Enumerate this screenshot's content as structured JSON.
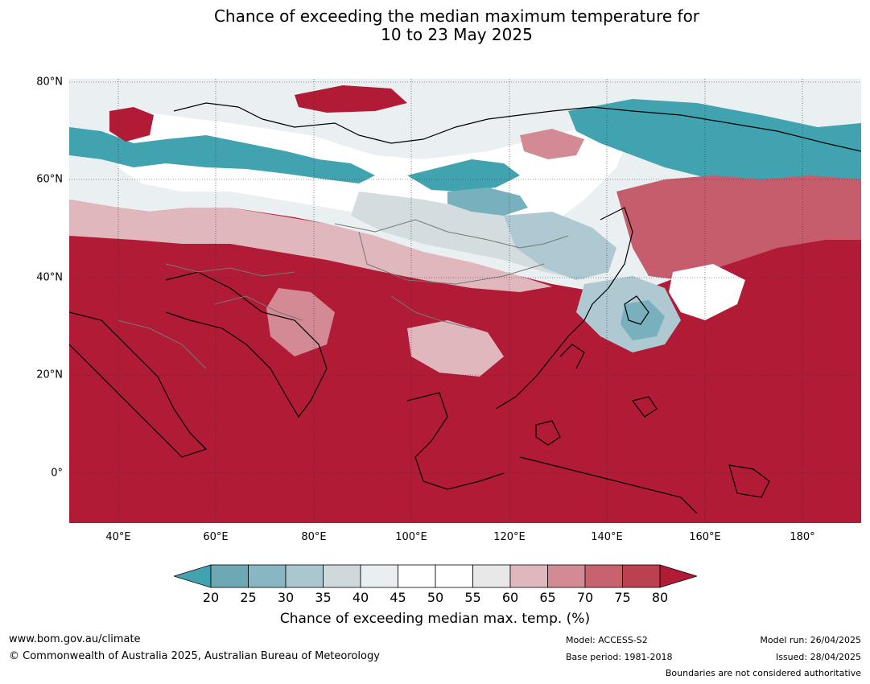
{
  "title_line1": "Chance of exceeding the median maximum temperature for",
  "title_line2": "10 to 23 May 2025",
  "map": {
    "lon_range": [
      30,
      192
    ],
    "lat_range": [
      -10,
      81
    ],
    "lat_labels": [
      "80°N",
      "60°N",
      "40°N",
      "20°N",
      "0°"
    ],
    "lat_values": [
      80,
      60,
      40,
      20,
      0
    ],
    "lon_labels": [
      "40°E",
      "60°E",
      "80°E",
      "100°E",
      "120°E",
      "140°E",
      "160°E",
      "180°"
    ],
    "lon_values": [
      40,
      60,
      80,
      100,
      120,
      140,
      160,
      180
    ],
    "colors": {
      "ocean_high": "#b11b36",
      "cool_strong": "#41a2b0",
      "cool_mid": "#78b1bd",
      "cool_light": "#aec9d1",
      "neutral_grey": "#d3dcdf",
      "neutral_pale": "#eaf0f2",
      "white": "#ffffff",
      "warm_light": "#e0b7bd",
      "warm_mid": "#d48a94",
      "warm_strong": "#c65d6c"
    }
  },
  "colorbar": {
    "ticks": [
      "20",
      "25",
      "30",
      "35",
      "40",
      "45",
      "50",
      "55",
      "60",
      "65",
      "70",
      "75",
      "80"
    ],
    "segment_colors": [
      "#6ea8b4",
      "#88b7c3",
      "#aac6cf",
      "#cfd9dc",
      "#e9eff1",
      "#ffffff",
      "#ffffff",
      "#e8e8e8",
      "#e0b7bd",
      "#d48a94",
      "#c6636f",
      "#bb4050"
    ],
    "low_extend_color": "#41a2b0",
    "high_extend_color": "#b11b36",
    "caption": "Chance of exceeding median max. temp. (%)"
  },
  "footer": {
    "website": "www.bom.gov.au/climate",
    "copyright": "© Commonwealth of Australia 2025, Australian Bureau of Meteorology",
    "model": "Model: ACCESS-S2",
    "base_period": "Base period: 1981-2018",
    "model_run": "Model run: 26/04/2025",
    "issued": "Issued: 28/04/2025",
    "disclaimer": "Boundaries are not considered authoritative"
  }
}
